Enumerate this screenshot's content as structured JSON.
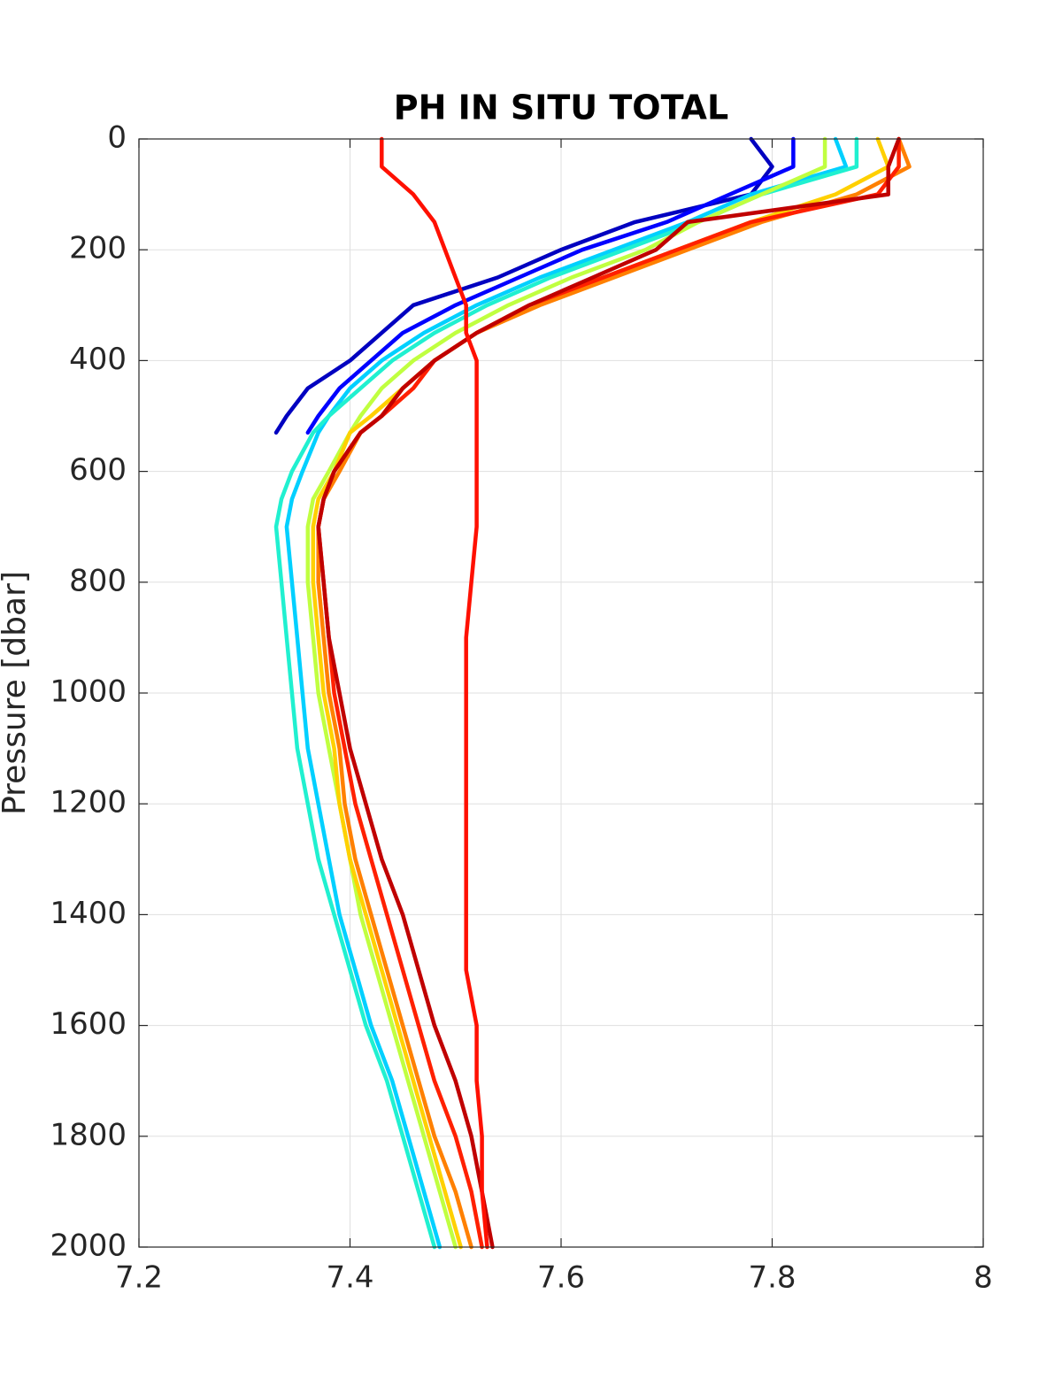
{
  "chart_data": {
    "type": "line",
    "title": "PH IN SITU TOTAL",
    "ylabel": "Pressure [dbar]",
    "xlim": [
      7.2,
      8
    ],
    "xticks": [
      7.2,
      7.4,
      7.6,
      7.8,
      8
    ],
    "ylim": [
      0,
      2000
    ],
    "yticks": [
      0,
      200,
      400,
      600,
      800,
      1000,
      1200,
      1400,
      1600,
      1800,
      2000
    ],
    "y_reversed": true,
    "grid": true,
    "pressure": [
      0,
      50,
      100,
      150,
      200,
      250,
      300,
      350,
      400,
      450,
      500,
      530,
      600,
      650,
      700,
      800,
      900,
      1000,
      1100,
      1200,
      1300,
      1400,
      1500,
      1600,
      1700,
      1800,
      1900,
      2000
    ],
    "series": [
      {
        "color": "#0000c0",
        "values": [
          7.78,
          7.8,
          7.78,
          7.67,
          7.6,
          7.54,
          7.46,
          7.43,
          7.4,
          7.36,
          7.34,
          7.33,
          null,
          null,
          null,
          null,
          null,
          null,
          null,
          null,
          null,
          null,
          null,
          null,
          null,
          null,
          null,
          null
        ]
      },
      {
        "color": "#0000ff",
        "values": [
          7.82,
          7.82,
          7.76,
          7.7,
          7.62,
          7.56,
          7.5,
          7.45,
          7.42,
          7.39,
          7.37,
          7.36,
          null,
          null,
          null,
          null,
          null,
          null,
          null,
          null,
          null,
          null,
          null,
          null,
          null,
          null,
          null,
          null
        ]
      },
      {
        "color": "#00d0ff",
        "values": [
          7.86,
          7.87,
          7.78,
          7.72,
          7.65,
          7.58,
          7.52,
          7.47,
          7.43,
          7.4,
          7.38,
          7.37,
          7.355,
          7.345,
          7.34,
          7.345,
          7.35,
          7.355,
          7.36,
          7.37,
          7.38,
          7.39,
          7.405,
          7.42,
          7.44,
          7.455,
          7.47,
          7.485
        ]
      },
      {
        "color": "#20f0d0",
        "values": [
          7.88,
          7.88,
          7.79,
          7.73,
          7.66,
          7.59,
          7.53,
          7.48,
          7.44,
          7.41,
          7.38,
          7.365,
          7.345,
          7.335,
          7.33,
          7.335,
          7.34,
          7.345,
          7.35,
          7.36,
          7.37,
          7.385,
          7.4,
          7.415,
          7.435,
          7.45,
          7.465,
          7.48
        ]
      },
      {
        "color": "#c0ff40",
        "values": [
          7.85,
          7.85,
          7.79,
          7.73,
          7.68,
          7.61,
          7.55,
          7.5,
          7.46,
          7.43,
          7.41,
          7.4,
          7.38,
          7.365,
          7.36,
          7.36,
          7.365,
          7.37,
          7.38,
          7.39,
          7.4,
          7.41,
          7.425,
          7.44,
          7.455,
          7.47,
          7.485,
          7.5
        ]
      },
      {
        "color": "#ffd000",
        "values": [
          7.9,
          7.91,
          7.86,
          7.78,
          7.71,
          7.64,
          7.57,
          7.52,
          7.48,
          7.45,
          7.42,
          7.4,
          7.385,
          7.37,
          7.365,
          7.365,
          7.37,
          7.375,
          7.385,
          7.39,
          7.4,
          7.415,
          7.43,
          7.445,
          7.46,
          7.475,
          7.49,
          7.505
        ]
      },
      {
        "color": "#ff8000",
        "values": [
          7.92,
          7.93,
          7.88,
          7.79,
          7.72,
          7.65,
          7.58,
          7.52,
          7.48,
          7.45,
          7.43,
          7.41,
          7.39,
          7.375,
          7.37,
          7.37,
          7.375,
          7.38,
          7.39,
          7.395,
          7.405,
          7.42,
          7.435,
          7.45,
          7.465,
          7.48,
          7.5,
          7.515
        ]
      },
      {
        "color": "#ff2000",
        "values": [
          7.92,
          7.92,
          7.9,
          7.78,
          7.71,
          7.64,
          7.57,
          7.52,
          7.48,
          7.46,
          7.43,
          7.41,
          7.385,
          7.375,
          7.37,
          7.375,
          7.38,
          7.385,
          7.395,
          7.405,
          7.42,
          7.435,
          7.45,
          7.465,
          7.48,
          7.5,
          7.515,
          7.525
        ]
      },
      {
        "color": "#c00000",
        "values": [
          7.92,
          7.91,
          7.91,
          7.72,
          7.69,
          7.63,
          7.57,
          7.52,
          7.48,
          7.45,
          7.43,
          7.41,
          7.385,
          7.375,
          7.37,
          7.375,
          7.38,
          7.39,
          7.4,
          7.415,
          7.43,
          7.45,
          7.465,
          7.48,
          7.5,
          7.515,
          7.525,
          7.535
        ]
      },
      {
        "color": "#ff1000",
        "values": [
          7.43,
          7.43,
          7.46,
          7.48,
          7.49,
          7.5,
          7.51,
          7.51,
          7.52,
          7.52,
          7.52,
          7.52,
          7.52,
          7.52,
          7.52,
          7.515,
          7.51,
          7.51,
          7.51,
          7.51,
          7.51,
          7.51,
          7.51,
          7.52,
          7.52,
          7.525,
          7.525,
          7.53
        ]
      }
    ]
  }
}
